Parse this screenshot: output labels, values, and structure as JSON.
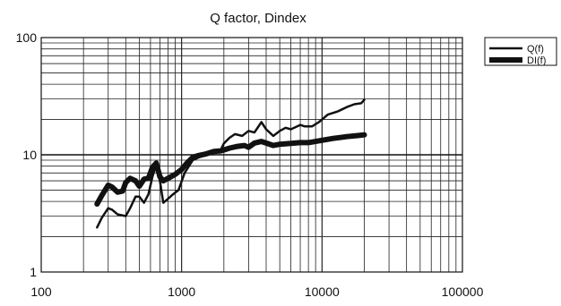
{
  "chart_data": {
    "type": "line",
    "title": "Q factor, Dindex",
    "xlabel": "",
    "ylabel": "",
    "xscale": "log",
    "yscale": "log",
    "xlim": [
      100,
      100000
    ],
    "ylim": [
      1,
      100
    ],
    "xticks": [
      100,
      1000,
      10000,
      100000
    ],
    "xtick_labels": [
      "100",
      "1000",
      "10000",
      "100000"
    ],
    "yticks": [
      1,
      10,
      100
    ],
    "ytick_labels": [
      "1",
      "10",
      "100"
    ],
    "grid": true,
    "legend_position": "top-right, outside plot area",
    "series": [
      {
        "name": "Q(f)",
        "color": "#111111",
        "line_weight": "thin",
        "x": [
          250,
          270,
          300,
          320,
          350,
          400,
          430,
          470,
          500,
          540,
          580,
          620,
          660,
          700,
          740,
          780,
          850,
          950,
          1050,
          1200,
          1300,
          1500,
          1700,
          1900,
          2000,
          2200,
          2400,
          2700,
          3000,
          3300,
          3700,
          4000,
          4500,
          5000,
          5500,
          6000,
          7000,
          7500,
          8500,
          9500,
          11000,
          13000,
          15000,
          17000,
          19000,
          20000
        ],
        "y": [
          2.4,
          2.9,
          3.5,
          3.4,
          3.1,
          3.0,
          3.5,
          4.4,
          4.4,
          3.9,
          4.6,
          6.5,
          8.2,
          6.0,
          3.9,
          4.1,
          4.5,
          5.0,
          7.0,
          9.0,
          9.4,
          10.0,
          10.5,
          11.0,
          12.5,
          14.0,
          15.0,
          14.5,
          16.0,
          15.5,
          19.0,
          16.5,
          14.5,
          16.0,
          17.0,
          16.5,
          18.0,
          17.5,
          17.5,
          19.0,
          22.0,
          23.5,
          25.5,
          27.0,
          27.5,
          29.5
        ]
      },
      {
        "name": "DI(f)",
        "color": "#111111",
        "line_weight": "thick",
        "x": [
          250,
          270,
          300,
          320,
          350,
          380,
          400,
          430,
          470,
          500,
          540,
          580,
          620,
          660,
          700,
          740,
          800,
          900,
          1000,
          1100,
          1200,
          1300,
          1500,
          1700,
          1900,
          2000,
          2200,
          2500,
          2800,
          3000,
          3300,
          3700,
          4000,
          4500,
          5000,
          6000,
          7000,
          8000,
          9000,
          10000,
          12000,
          15000,
          18000,
          20000
        ],
        "y": [
          3.8,
          4.5,
          5.5,
          5.3,
          4.8,
          4.9,
          5.8,
          6.3,
          6.0,
          5.4,
          6.2,
          6.3,
          7.8,
          8.5,
          6.5,
          6.0,
          6.3,
          6.8,
          7.5,
          8.6,
          9.5,
          9.8,
          10.2,
          10.7,
          10.8,
          11.0,
          11.4,
          11.8,
          12.0,
          11.6,
          12.6,
          13.0,
          12.6,
          12.0,
          12.3,
          12.5,
          12.7,
          12.7,
          13.0,
          13.3,
          13.8,
          14.3,
          14.6,
          14.8
        ]
      }
    ]
  }
}
